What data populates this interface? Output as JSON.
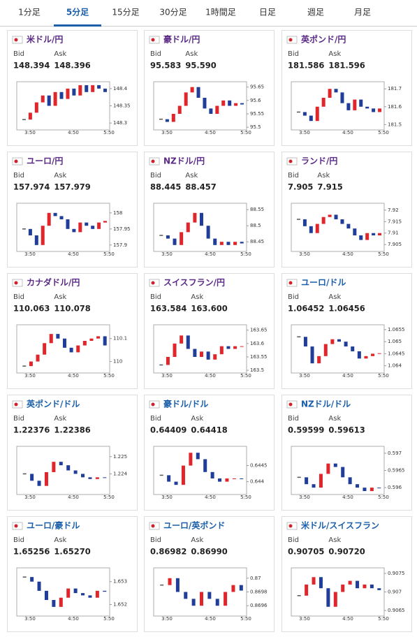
{
  "tabs": [
    "1分足",
    "5分足",
    "15分足",
    "30分足",
    "1時間足",
    "日足",
    "週足",
    "月足"
  ],
  "active_tab": 1,
  "labels": {
    "bid": "Bid",
    "ask": "Ask"
  },
  "time_labels": [
    "3:50",
    "4:50",
    "5:50"
  ],
  "charts": [
    {
      "name": "米ドル/円",
      "color": "#5b2a86",
      "bid": "148.394",
      "ask": "148.396",
      "yticks": [
        148.3,
        148.35,
        148.4
      ],
      "ylim": [
        148.28,
        148.42
      ],
      "closes": [
        148.31,
        148.33,
        148.36,
        148.38,
        148.35,
        148.39,
        148.37,
        148.4,
        148.38,
        148.41,
        148.39,
        148.41,
        148.4,
        148.39
      ]
    },
    {
      "name": "豪ドル/円",
      "color": "#5b2a86",
      "bid": "95.583",
      "ask": "95.590",
      "yticks": [
        95.5,
        95.55,
        95.6,
        95.65
      ],
      "ylim": [
        95.49,
        95.67
      ],
      "closes": [
        95.53,
        95.52,
        95.55,
        95.58,
        95.63,
        95.65,
        95.61,
        95.57,
        95.55,
        95.58,
        95.6,
        95.58,
        95.59,
        95.585
      ]
    },
    {
      "name": "英ポンド/円",
      "color": "#5b2a86",
      "bid": "181.586",
      "ask": "181.596",
      "yticks": [
        181.5,
        181.6,
        181.7
      ],
      "ylim": [
        181.47,
        181.74
      ],
      "closes": [
        181.57,
        181.55,
        181.52,
        181.6,
        181.65,
        181.7,
        181.68,
        181.62,
        181.58,
        181.64,
        181.6,
        181.59,
        181.57,
        181.59
      ]
    },
    {
      "name": "ユーロ/円",
      "color": "#5b2a86",
      "bid": "157.974",
      "ask": "157.979",
      "yticks": [
        157.9,
        157.95,
        158
      ],
      "ylim": [
        157.88,
        158.03
      ],
      "closes": [
        157.95,
        157.93,
        157.9,
        157.96,
        158,
        157.99,
        157.98,
        157.95,
        157.94,
        157.97,
        157.96,
        157.95,
        157.97,
        157.975
      ]
    },
    {
      "name": "NZドル/円",
      "color": "#5b2a86",
      "bid": "88.445",
      "ask": "88.457",
      "yticks": [
        88.45,
        88.5,
        88.55
      ],
      "ylim": [
        88.42,
        88.57
      ],
      "closes": [
        88.47,
        88.46,
        88.44,
        88.48,
        88.51,
        88.54,
        88.5,
        88.46,
        88.44,
        88.45,
        88.44,
        88.45,
        88.445
      ]
    },
    {
      "name": "ランド/円",
      "color": "#5b2a86",
      "bid": "7.905",
      "ask": "7.915",
      "yticks": [
        7.905,
        7.91,
        7.915,
        7.92
      ],
      "ylim": [
        7.902,
        7.923
      ],
      "closes": [
        7.916,
        7.913,
        7.91,
        7.914,
        7.917,
        7.918,
        7.916,
        7.914,
        7.912,
        7.909,
        7.907,
        7.91,
        7.909,
        7.91
      ]
    },
    {
      "name": "カナダドル/円",
      "color": "#5b2a86",
      "bid": "110.063",
      "ask": "110.078",
      "yticks": [
        110,
        110.1
      ],
      "ylim": [
        109.95,
        110.16
      ],
      "closes": [
        109.98,
        110,
        110.03,
        110.08,
        110.12,
        110.1,
        110.06,
        110.04,
        110.07,
        110.09,
        110.1,
        110.11,
        110.07
      ]
    },
    {
      "name": "スイスフラン/円",
      "color": "#5b2a86",
      "bid": "163.584",
      "ask": "163.600",
      "yticks": [
        163.5,
        163.55,
        163.6,
        163.65
      ],
      "ylim": [
        163.49,
        163.67
      ],
      "closes": [
        163.52,
        163.55,
        163.6,
        163.63,
        163.58,
        163.55,
        163.57,
        163.54,
        163.56,
        163.59,
        163.58,
        163.59,
        163.59
      ]
    },
    {
      "name": "ユーロ/ドル",
      "color": "#1b5faa",
      "bid": "1.06452",
      "ask": "1.06456",
      "yticks": [
        1.064,
        1.0645,
        1.065,
        1.0655
      ],
      "ylim": [
        1.0637,
        1.0657
      ],
      "closes": [
        1.0652,
        1.0648,
        1.0641,
        1.0644,
        1.0649,
        1.0651,
        1.065,
        1.0648,
        1.0646,
        1.0643,
        1.0644,
        1.0645,
        1.06452
      ]
    },
    {
      "name": "英ポンド/ドル",
      "color": "#1b5faa",
      "bid": "1.22376",
      "ask": "1.22386",
      "yticks": [
        1.224,
        1.225
      ],
      "ylim": [
        1.2228,
        1.2256
      ],
      "closes": [
        1.224,
        1.2236,
        1.2233,
        1.2241,
        1.2247,
        1.2245,
        1.2242,
        1.224,
        1.2238,
        1.2237,
        1.2238,
        1.22376
      ]
    },
    {
      "name": "豪ドル/ドル",
      "color": "#1b5faa",
      "bid": "0.64409",
      "ask": "0.64418",
      "yticks": [
        0.644,
        0.6445
      ],
      "ylim": [
        0.6436,
        0.6451
      ],
      "closes": [
        0.6442,
        0.644,
        0.6439,
        0.6445,
        0.6449,
        0.6447,
        0.6443,
        0.6441,
        0.644,
        0.6441,
        0.6441,
        0.64409
      ]
    },
    {
      "name": "NZドル/ドル",
      "color": "#1b5faa",
      "bid": "0.59599",
      "ask": "0.59613",
      "yticks": [
        0.596,
        0.5965,
        0.597
      ],
      "ylim": [
        0.5958,
        0.5972
      ],
      "closes": [
        0.5963,
        0.5961,
        0.596,
        0.5964,
        0.5967,
        0.5966,
        0.5963,
        0.5961,
        0.596,
        0.5959,
        0.596,
        0.59599
      ]
    },
    {
      "name": "ユーロ/豪ドル",
      "color": "#1b5faa",
      "bid": "1.65256",
      "ask": "1.65270",
      "yticks": [
        1.652,
        1.653
      ],
      "ylim": [
        1.6515,
        1.6536
      ],
      "closes": [
        1.6532,
        1.653,
        1.6526,
        1.6522,
        1.6519,
        1.6523,
        1.6527,
        1.6525,
        1.6524,
        1.6523,
        1.6526,
        1.65256
      ]
    },
    {
      "name": "ユーロ/英ポンド",
      "color": "#1b5faa",
      "bid": "0.86982",
      "ask": "0.86990",
      "yticks": [
        0.8696,
        0.8698,
        0.87
      ],
      "ylim": [
        0.86945,
        0.87015
      ],
      "closes": [
        0.8699,
        0.87,
        0.8698,
        0.8697,
        0.8696,
        0.8698,
        0.8697,
        0.8696,
        0.8698,
        0.8699,
        0.86982
      ]
    },
    {
      "name": "米ドル/スイスフラン",
      "color": "#1b5faa",
      "bid": "0.90705",
      "ask": "0.90720",
      "yticks": [
        0.9065,
        0.907,
        0.9075
      ],
      "ylim": [
        0.90635,
        0.90765
      ],
      "closes": [
        0.9069,
        0.9072,
        0.9074,
        0.9071,
        0.9066,
        0.907,
        0.9072,
        0.9073,
        0.9071,
        0.9072,
        0.9071,
        0.90705
      ]
    }
  ]
}
